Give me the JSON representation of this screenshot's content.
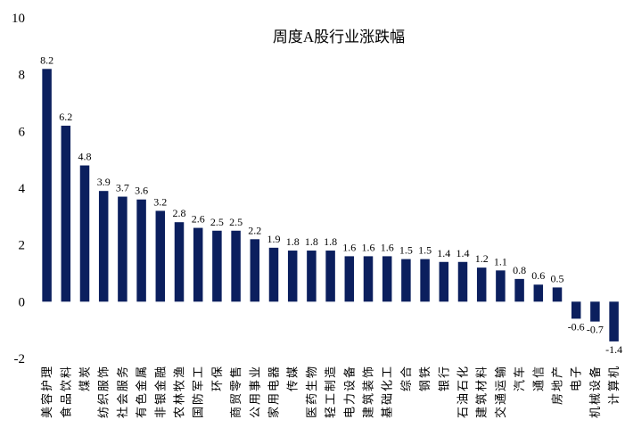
{
  "chart_data": {
    "type": "bar",
    "title": "周度A股行业涨跌幅",
    "xlabel": "",
    "ylabel": "",
    "ylim": [
      -2,
      10
    ],
    "yticks": [
      "-2",
      "0",
      "2",
      "4",
      "6",
      "8",
      "10"
    ],
    "grid": false,
    "legend": "none",
    "bar_color": "#0b1f5e",
    "categories": [
      "美容护理",
      "食品饮料",
      "煤炭",
      "纺织服饰",
      "社会服务",
      "有色金属",
      "非银金融",
      "农林牧渔",
      "国防军工",
      "环保",
      "商贸零售",
      "公用事业",
      "家用电器",
      "传媒",
      "医药生物",
      "轻工制造",
      "电力设备",
      "建筑装饰",
      "基础化工",
      "综合",
      "钢铁",
      "银行",
      "石油石化",
      "建筑材料",
      "交通运输",
      "汽车",
      "通信",
      "房地产",
      "电子",
      "机械设备",
      "计算机"
    ],
    "values": [
      8.2,
      6.2,
      4.8,
      3.9,
      3.7,
      3.6,
      3.2,
      2.8,
      2.6,
      2.5,
      2.5,
      2.2,
      1.9,
      1.8,
      1.8,
      1.8,
      1.6,
      1.6,
      1.6,
      1.5,
      1.5,
      1.4,
      1.4,
      1.2,
      1.1,
      0.8,
      0.6,
      0.5,
      -0.6,
      -0.7,
      -1.4
    ],
    "data_labels": [
      "8.2",
      "6.2",
      "4.8",
      "3.9",
      "3.7",
      "3.6",
      "3.2",
      "2.8",
      "2.6",
      "2.5",
      "2.5",
      "2.2",
      "1.9",
      "1.8",
      "1.8",
      "1.8",
      "1.6",
      "1.6",
      "1.6",
      "1.5",
      "1.5",
      "1.4",
      "1.4",
      "1.2",
      "1.1",
      "0.8",
      "0.6",
      "0.5",
      "-0.6",
      "-0.7",
      "-1.4"
    ]
  }
}
